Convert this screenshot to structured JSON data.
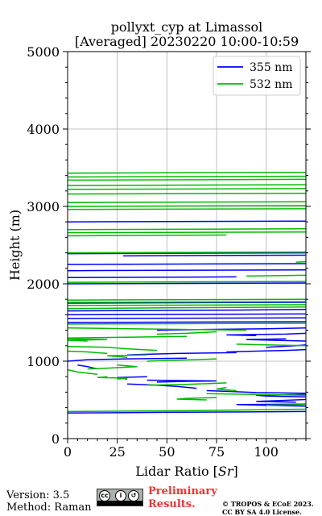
{
  "chart_data": {
    "type": "line",
    "title": "pollyxt_cyp at Limassol",
    "subtitle": "[Averaged] 20230220 10:00-10:59",
    "xlabel": "Lidar Ratio [$Sr$]",
    "xlabel_text": "Lidar Ratio [",
    "xlabel_unit": "Sr",
    "xlabel_close": "]",
    "ylabel": "Height (m)",
    "xlim": [
      0,
      120
    ],
    "ylim": [
      0,
      5000
    ],
    "x_ticks": [
      0,
      25,
      50,
      75,
      100
    ],
    "y_ticks": [
      0,
      1000,
      2000,
      3000,
      4000,
      5000
    ],
    "grid": true,
    "legend_position": "top-right",
    "series": [
      {
        "name": "355 nm",
        "color": "#0000ff",
        "segments": [
          [
            [
              0,
              330
            ],
            [
              50,
              340
            ],
            [
              90,
              345
            ],
            [
              120,
              350
            ]
          ],
          [
            [
              120,
              420
            ],
            [
              100,
              430
            ],
            [
              85,
              440
            ],
            [
              120,
              445
            ]
          ],
          [
            [
              115,
              470
            ],
            [
              95,
              480
            ],
            [
              110,
              495
            ],
            [
              120,
              505
            ]
          ],
          [
            [
              120,
              540
            ],
            [
              100,
              550
            ],
            [
              95,
              560
            ],
            [
              120,
              570
            ]
          ],
          [
            [
              120,
              585
            ],
            [
              95,
              595
            ],
            [
              80,
              610
            ],
            [
              70,
              620
            ]
          ],
          [
            [
              65,
              650
            ],
            [
              55,
              675
            ],
            [
              45,
              690
            ],
            [
              30,
              705
            ]
          ],
          [
            [
              45,
              730
            ],
            [
              60,
              740
            ],
            [
              75,
              745
            ],
            [
              40,
              755
            ]
          ],
          [
            [
              30,
              770
            ],
            [
              25,
              790
            ],
            [
              40,
              800
            ]
          ],
          [
            [
              15,
              900
            ],
            [
              10,
              930
            ],
            [
              5,
              950
            ]
          ],
          [
            [
              0,
              1000
            ],
            [
              10,
              1020
            ],
            [
              30,
              1030
            ],
            [
              60,
              1040
            ]
          ],
          [
            [
              30,
              1080
            ],
            [
              40,
              1090
            ],
            [
              55,
              1100
            ],
            [
              85,
              1110
            ]
          ],
          [
            [
              80,
              1120
            ],
            [
              95,
              1130
            ],
            [
              110,
              1140
            ],
            [
              120,
              1150
            ]
          ],
          [
            [
              100,
              1180
            ],
            [
              115,
              1200
            ],
            [
              120,
              1210
            ]
          ],
          [
            [
              120,
              1260
            ],
            [
              105,
              1270
            ],
            [
              90,
              1280
            ],
            [
              110,
              1290
            ]
          ],
          [
            [
              95,
              1330
            ],
            [
              80,
              1340
            ],
            [
              110,
              1350
            ],
            [
              120,
              1360
            ]
          ],
          [
            [
              45,
              1400
            ],
            [
              70,
              1410
            ],
            [
              100,
              1420
            ],
            [
              120,
              1430
            ]
          ],
          [
            [
              0,
              1500
            ],
            [
              120,
              1510
            ]
          ],
          [
            [
              0,
              1550
            ],
            [
              120,
              1560
            ]
          ],
          [
            [
              0,
              1600
            ],
            [
              120,
              1610
            ]
          ],
          [
            [
              0,
              1650
            ],
            [
              85,
              1660
            ],
            [
              120,
              1670
            ]
          ],
          [
            [
              0,
              1750
            ],
            [
              120,
              1760
            ]
          ],
          [
            [
              0,
              2000
            ],
            [
              120,
              2010
            ]
          ],
          [
            [
              0,
              2080
            ],
            [
              85,
              2090
            ]
          ],
          [
            [
              0,
              2170
            ],
            [
              120,
              2180
            ]
          ],
          [
            [
              0,
              2250
            ],
            [
              120,
              2260
            ]
          ],
          [
            [
              28,
              2360
            ],
            [
              60,
              2365
            ],
            [
              120,
              2370
            ]
          ],
          [
            [
              0,
              2390
            ],
            [
              120,
              2400
            ]
          ],
          [
            [
              0,
              2800
            ],
            [
              120,
              2810
            ]
          ]
        ]
      },
      {
        "name": "532 nm",
        "color": "#00bb00",
        "segments": [
          [
            [
              0,
              350
            ],
            [
              60,
              360
            ],
            [
              120,
              380
            ]
          ],
          [
            [
              100,
              430
            ],
            [
              120,
              440
            ]
          ],
          [
            [
              70,
              500
            ],
            [
              55,
              510
            ],
            [
              60,
              520
            ],
            [
              75,
              530
            ]
          ],
          [
            [
              120,
              560
            ],
            [
              95,
              570
            ],
            [
              70,
              580
            ]
          ],
          [
            [
              85,
              620
            ],
            [
              75,
              640
            ],
            [
              80,
              660
            ]
          ],
          [
            [
              40,
              690
            ],
            [
              60,
              700
            ],
            [
              80,
              720
            ]
          ],
          [
            [
              25,
              770
            ],
            [
              30,
              780
            ],
            [
              15,
              790
            ],
            [
              20,
              800
            ]
          ],
          [
            [
              15,
              830
            ],
            [
              5,
              860
            ],
            [
              0,
              890
            ]
          ],
          [
            [
              10,
              900
            ],
            [
              20,
              910
            ],
            [
              35,
              930
            ],
            [
              25,
              950
            ]
          ],
          [
            [
              40,
              1000
            ],
            [
              50,
              1010
            ],
            [
              65,
              1020
            ],
            [
              75,
              1030
            ]
          ],
          [
            [
              30,
              1050
            ],
            [
              20,
              1070
            ],
            [
              40,
              1080
            ]
          ],
          [
            [
              20,
              1100
            ],
            [
              10,
              1120
            ],
            [
              0,
              1130
            ]
          ],
          [
            [
              45,
              1140
            ],
            [
              30,
              1160
            ],
            [
              20,
              1180
            ],
            [
              0,
              1190
            ]
          ],
          [
            [
              120,
              1200
            ],
            [
              100,
              1210
            ],
            [
              85,
              1220
            ]
          ],
          [
            [
              10,
              1260
            ],
            [
              0,
              1270
            ],
            [
              20,
              1280
            ],
            [
              0,
              1290
            ]
          ],
          [
            [
              0,
              1300
            ],
            [
              30,
              1310
            ],
            [
              60,
              1320
            ]
          ],
          [
            [
              45,
              1350
            ],
            [
              60,
              1360
            ],
            [
              75,
              1380
            ]
          ],
          [
            [
              90,
              1400
            ],
            [
              60,
              1410
            ],
            [
              30,
              1420
            ],
            [
              0,
              1430
            ]
          ],
          [
            [
              0,
              1480
            ],
            [
              120,
              1490
            ]
          ],
          [
            [
              0,
              1680
            ],
            [
              50,
              1690
            ],
            [
              120,
              1700
            ]
          ],
          [
            [
              0,
              1720
            ],
            [
              120,
              1730
            ]
          ],
          [
            [
              0,
              1760
            ],
            [
              120,
              1770
            ]
          ],
          [
            [
              0,
              1790
            ],
            [
              120,
              1800
            ]
          ],
          [
            [
              0,
              2020
            ],
            [
              120,
              2030
            ]
          ],
          [
            [
              90,
              2100
            ],
            [
              120,
              2110
            ]
          ],
          [
            [
              115,
              2280
            ],
            [
              120,
              2285
            ]
          ],
          [
            [
              0,
              2400
            ],
            [
              50,
              2405
            ],
            [
              120,
              2410
            ]
          ],
          [
            [
              0,
              2620
            ],
            [
              80,
              2630
            ]
          ],
          [
            [
              0,
              2660
            ],
            [
              120,
              2670
            ]
          ],
          [
            [
              0,
              2700
            ],
            [
              120,
              2710
            ]
          ],
          [
            [
              0,
              2960
            ],
            [
              120,
              2970
            ]
          ],
          [
            [
              0,
              3000
            ],
            [
              120,
              3010
            ]
          ],
          [
            [
              0,
              3050
            ],
            [
              120,
              3060
            ]
          ],
          [
            [
              0,
              3160
            ],
            [
              120,
              3170
            ]
          ],
          [
            [
              0,
              3220
            ],
            [
              120,
              3230
            ]
          ],
          [
            [
              0,
              3270
            ],
            [
              120,
              3280
            ]
          ],
          [
            [
              0,
              3340
            ],
            [
              120,
              3350
            ]
          ],
          [
            [
              0,
              3380
            ],
            [
              120,
              3390
            ]
          ],
          [
            [
              0,
              3430
            ],
            [
              120,
              3440
            ]
          ]
        ]
      }
    ]
  },
  "footer": {
    "version": "Version: 3.5",
    "method": "Method: Raman",
    "prelim_line1": "Preliminary",
    "prelim_line2": "Results.",
    "credit_line1": "© TROPOS & ECoE 2023.",
    "credit_line2": "CC BY SA 4.0 License.",
    "cc_badge_text": "CC BY SA"
  }
}
